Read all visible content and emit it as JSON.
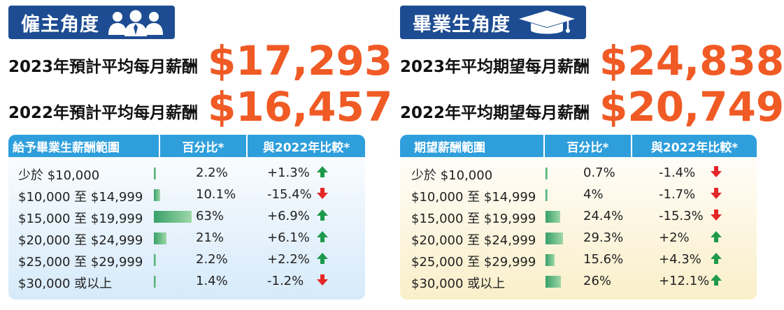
{
  "employer": {
    "badge_title": "僱主角度",
    "line1_label": "2023年預計平均每月薪酬",
    "line1_amount": "$17,293",
    "line2_label": "2022年預計平均每月薪酬",
    "line2_amount": "$16,457",
    "headers": [
      "給予畢業生薪酬範圍",
      "百分比*",
      "與2022年比較*"
    ],
    "rows": [
      {
        "range": "少於 $10,000",
        "pct_label": "2.2%",
        "pct": 2.2,
        "change": "+1.3%",
        "dir": "up"
      },
      {
        "range": "$10,000 至 $14,999",
        "pct_label": "10.1%",
        "pct": 10.1,
        "change": "-15.4%",
        "dir": "down"
      },
      {
        "range": "$15,000 至 $19,999",
        "pct_label": "63%",
        "pct": 63,
        "change": "+6.9%",
        "dir": "up"
      },
      {
        "range": "$20,000 至 $24,999",
        "pct_label": "21%",
        "pct": 21,
        "change": "+6.1%",
        "dir": "up"
      },
      {
        "range": "$25,000 至 $29,999",
        "pct_label": "2.2%",
        "pct": 2.2,
        "change": "+2.2%",
        "dir": "up"
      },
      {
        "range": "$30,000 或以上",
        "pct_label": "1.4%",
        "pct": 1.4,
        "change": "-1.2%",
        "dir": "down"
      }
    ]
  },
  "graduate": {
    "badge_title": "畢業生角度",
    "line1_label": "2023年平均期望每月薪酬",
    "line1_amount": "$24,838",
    "line2_label": "2022年平均期望每月薪酬",
    "line2_amount": "$20,749",
    "headers": [
      "期望薪酬範圍",
      "百分比*",
      "與2022年比較*"
    ],
    "rows": [
      {
        "range": "少於 $10,000",
        "pct_label": "0.7%",
        "pct": 0.7,
        "change": "-1.4%",
        "dir": "down"
      },
      {
        "range": "$10,000 至 $14,999",
        "pct_label": "4%",
        "pct": 4,
        "change": "-1.7%",
        "dir": "down"
      },
      {
        "range": "$15,000 至 $19,999",
        "pct_label": "24.4%",
        "pct": 24.4,
        "change": "-15.3%",
        "dir": "down"
      },
      {
        "range": "$20,000 至 $24,999",
        "pct_label": "29.3%",
        "pct": 29.3,
        "change": "+2%",
        "dir": "up"
      },
      {
        "range": "$25,000 至 $29,999",
        "pct_label": "15.6%",
        "pct": 15.6,
        "change": "+4.3%",
        "dir": "up"
      },
      {
        "range": "$30,000 或以上",
        "pct_label": "26%",
        "pct": 26,
        "change": "+12.1%",
        "dir": "up"
      }
    ]
  },
  "colors": {
    "badge": "#1d4c92",
    "amount": "#f05a24",
    "header": "#2f9fdc",
    "up_arrow": "#1e9a4c",
    "down_arrow": "#e52626"
  },
  "icons": {
    "employer": "people-group-icon",
    "graduate": "graduation-cap-icon",
    "increase": "arrow-up-icon",
    "decrease": "arrow-down-icon"
  }
}
